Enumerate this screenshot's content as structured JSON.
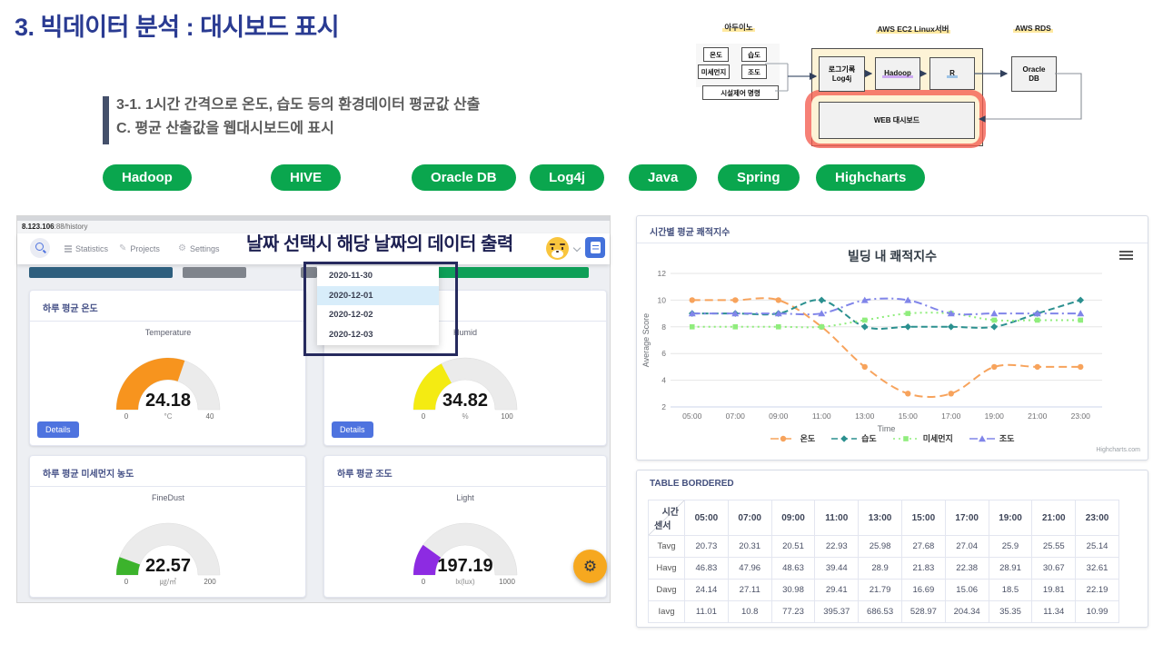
{
  "slide": {
    "number": "3.",
    "title": " 빅데이터 분석 : 대시보드 표시",
    "sub1": "3-1.  1시간 간격으로 온도, 습도 등의 환경데이터 평균값 산출",
    "sub2": "C. 평균 산출값을 웹대시보드에 표시"
  },
  "pills": [
    "Hadoop",
    "HIVE",
    "Oracle DB",
    "Log4j",
    "Java",
    "Spring",
    "Highcharts"
  ],
  "diagram": {
    "arduino_label": "아두이노",
    "ec2_label": "AWS EC2 Linux서버",
    "rds_label": "AWS RDS",
    "sensor_temp": "온도",
    "sensor_humid": "습도",
    "sensor_dust": "미세먼지",
    "sensor_light": "조도",
    "control_box": "시설제어 명령",
    "log_line1": "로그기록",
    "log_line2": "Log4j",
    "hadoop_box": "Hadoop",
    "r_box": "R",
    "web_box": "WEB 대시보드",
    "oracle_line1": "Oracle",
    "oracle_line2": "DB"
  },
  "dashboard": {
    "url_host": "8.123.106",
    "url_path": ":88/history",
    "nav": {
      "statistics": "Statistics",
      "projects": "Projects",
      "settings": "Settings"
    },
    "annotation": "날짜 선택시 해당 날짜의 데이터 출력",
    "dropdown": {
      "items": [
        "2020-11-30",
        "2020-12-01",
        "2020-12-02",
        "2020-12-03"
      ],
      "selected_index": 1
    },
    "cards": {
      "temp_title": "하루 평균 온도",
      "dust_title": "하루 평균 미세먼지 농도",
      "light_title": "하루 평균 조도",
      "details_label": "Details"
    }
  },
  "right_panels": {
    "chart_header": "시간별 평균 쾌적지수",
    "table_header": "TABLE BORDERED"
  },
  "chart_data": [
    {
      "type": "line",
      "title": "빌딩 내 쾌적지수",
      "xlabel": "Time",
      "ylabel": "Average Score",
      "ylim": [
        2,
        12
      ],
      "yticks": [
        2,
        4,
        6,
        8,
        10,
        12
      ],
      "categories": [
        "05:00",
        "07:00",
        "09:00",
        "11:00",
        "13:00",
        "15:00",
        "17:00",
        "19:00",
        "21:00",
        "23:00"
      ],
      "series": [
        {
          "name": "온도",
          "color": "#f7a35c",
          "dash": "9,5",
          "marker": "circle",
          "values": [
            10,
            10,
            10,
            8,
            5,
            3,
            3,
            5,
            5,
            5
          ]
        },
        {
          "name": "습도",
          "color": "#2b908f",
          "dash": "7,4",
          "marker": "diamond",
          "values": [
            9,
            9,
            9,
            10,
            8,
            8,
            8,
            8,
            9,
            10
          ]
        },
        {
          "name": "미세먼지",
          "color": "#90ed7d",
          "dash": "2,4",
          "marker": "square",
          "values": [
            8,
            8,
            8,
            8,
            8.5,
            9,
            9,
            8.5,
            8.5,
            8.5
          ]
        },
        {
          "name": "조도",
          "color": "#8085e9",
          "dash": "9,4,2,4",
          "marker": "triangle",
          "values": [
            9,
            9,
            9,
            9,
            10,
            10,
            9,
            9,
            9,
            9
          ]
        }
      ],
      "legend_position": "bottom",
      "grid": true,
      "credit": "Highcharts.com"
    },
    {
      "type": "gauge",
      "label": "Temperature",
      "value": "24.18",
      "unit": "°C",
      "min": "0",
      "max": "40",
      "color": "#f7941e"
    },
    {
      "type": "gauge",
      "label": "Humid",
      "value": "34.82",
      "unit": "%",
      "min": "0",
      "max": "100",
      "color": "#f4eb12"
    },
    {
      "type": "gauge",
      "label": "FineDust",
      "value": "22.57",
      "unit": "㎍/㎥",
      "min": "0",
      "max": "200",
      "color": "#3cb32c"
    },
    {
      "type": "gauge",
      "label": "Light",
      "value": "197.19",
      "unit": "lx(lux)",
      "min": "0",
      "max": "1000",
      "color": "#8d2be2"
    },
    {
      "type": "table",
      "corner_top": "시간",
      "corner_bottom": "센서",
      "columns": [
        "05:00",
        "07:00",
        "09:00",
        "11:00",
        "13:00",
        "15:00",
        "17:00",
        "19:00",
        "21:00",
        "23:00"
      ],
      "rows": [
        {
          "label": "Tavg",
          "values": [
            "20.73",
            "20.31",
            "20.51",
            "22.93",
            "25.98",
            "27.68",
            "27.04",
            "25.9",
            "25.55",
            "25.14"
          ]
        },
        {
          "label": "Havg",
          "values": [
            "46.83",
            "47.96",
            "48.63",
            "39.44",
            "28.9",
            "21.83",
            "22.38",
            "28.91",
            "30.67",
            "32.61"
          ]
        },
        {
          "label": "Davg",
          "values": [
            "24.14",
            "27.11",
            "30.98",
            "29.41",
            "21.79",
            "16.69",
            "15.06",
            "18.5",
            "19.81",
            "22.19"
          ]
        },
        {
          "label": "Iavg",
          "values": [
            "11.01",
            "10.8",
            "77.23",
            "395.37",
            "686.53",
            "528.97",
            "204.34",
            "35.35",
            "11.34",
            "10.99"
          ]
        }
      ]
    }
  ]
}
